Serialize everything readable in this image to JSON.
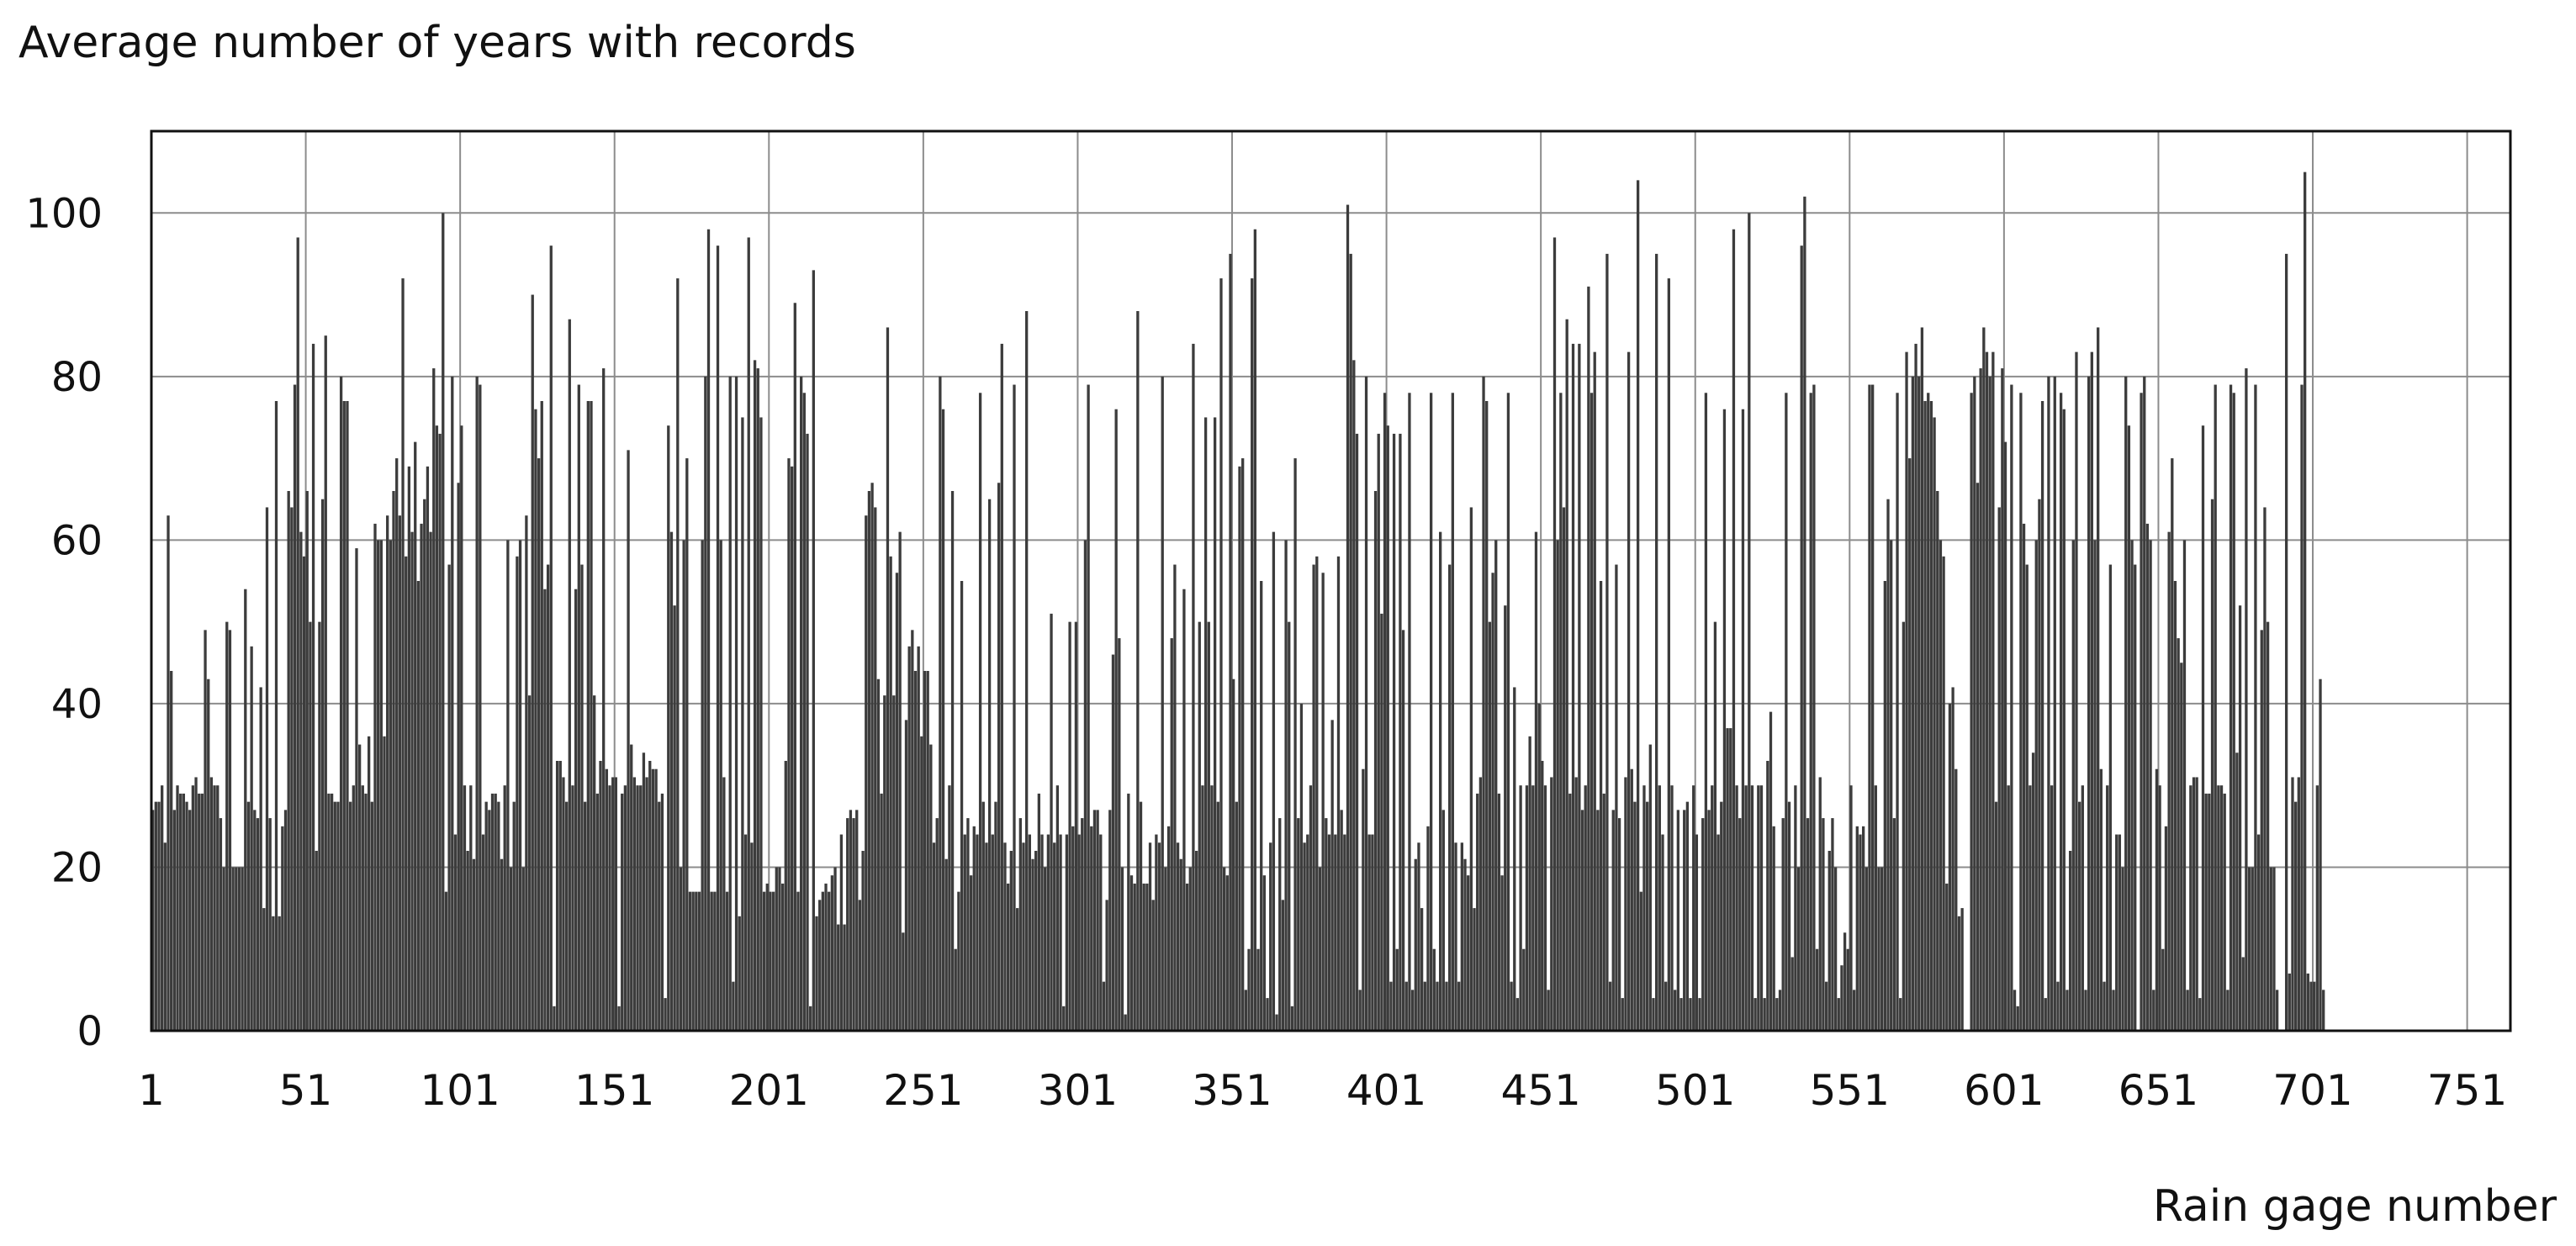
{
  "chart_data": {
    "type": "bar",
    "title": "",
    "ylabel": "Average number of years with records",
    "xlabel": "Rain gage number",
    "ylim": [
      0,
      110
    ],
    "xlim": [
      1,
      764
    ],
    "y_ticks": [
      0,
      20,
      40,
      60,
      80,
      100
    ],
    "x_ticks": [
      1,
      51,
      101,
      151,
      201,
      251,
      301,
      351,
      401,
      451,
      501,
      551,
      601,
      651,
      701,
      751
    ],
    "grid": true,
    "legend": "none",
    "bar_color": "#3c3c3c",
    "x_start": 1,
    "values": [
      27,
      28,
      28,
      30,
      23,
      63,
      44,
      27,
      30,
      29,
      29,
      28,
      27,
      30,
      31,
      29,
      29,
      49,
      43,
      31,
      30,
      30,
      26,
      20,
      50,
      49,
      20,
      20,
      20,
      20,
      54,
      28,
      47,
      27,
      26,
      42,
      15,
      64,
      26,
      14,
      77,
      14,
      25,
      27,
      66,
      64,
      79,
      97,
      61,
      58,
      66,
      50,
      84,
      22,
      50,
      65,
      85,
      29,
      29,
      28,
      28,
      80,
      77,
      77,
      28,
      30,
      59,
      35,
      30,
      29,
      36,
      28,
      62,
      60,
      60,
      36,
      63,
      60,
      66,
      70,
      63,
      92,
      58,
      69,
      61,
      72,
      55,
      62,
      65,
      69,
      61,
      81,
      74,
      73,
      100,
      17,
      57,
      80,
      24,
      67,
      74,
      30,
      22,
      30,
      21,
      80,
      79,
      24,
      28,
      27,
      29,
      29,
      28,
      21,
      30,
      60,
      20,
      28,
      58,
      60,
      20,
      63,
      41,
      90,
      76,
      70,
      77,
      54,
      57,
      96,
      3,
      33,
      33,
      31,
      28,
      87,
      30,
      54,
      79,
      57,
      28,
      77,
      77,
      41,
      29,
      33,
      81,
      32,
      30,
      31,
      31,
      3,
      29,
      30,
      71,
      35,
      31,
      30,
      30,
      34,
      31,
      33,
      32,
      32,
      28,
      29,
      4,
      74,
      61,
      52,
      92,
      20,
      60,
      70,
      17,
      17,
      17,
      17,
      60,
      80,
      98,
      17,
      17,
      96,
      60,
      31,
      17,
      80,
      6,
      80,
      14,
      75,
      24,
      97,
      23,
      82,
      81,
      75,
      17,
      18,
      17,
      17,
      20,
      20,
      18,
      33,
      70,
      69,
      89,
      17,
      80,
      78,
      73,
      3,
      93,
      14,
      16,
      17,
      18,
      17,
      19,
      20,
      13,
      24,
      13,
      26,
      27,
      26,
      27,
      16,
      22,
      63,
      66,
      67,
      64,
      43,
      29,
      41,
      86,
      58,
      41,
      56,
      61,
      12,
      38,
      47,
      49,
      44,
      47,
      36,
      44,
      44,
      35,
      23,
      26,
      80,
      76,
      21,
      30,
      66,
      10,
      17,
      55,
      24,
      26,
      19,
      25,
      24,
      78,
      28,
      23,
      65,
      24,
      28,
      67,
      84,
      23,
      18,
      22,
      79,
      15,
      26,
      23,
      88,
      24,
      21,
      22,
      29,
      24,
      20,
      24,
      51,
      23,
      30,
      24,
      3,
      24,
      50,
      25,
      50,
      24,
      26,
      60,
      79,
      25,
      27,
      27,
      24,
      6,
      16,
      27,
      46,
      76,
      48,
      20,
      2,
      29,
      19,
      18,
      88,
      28,
      18,
      18,
      23,
      16,
      24,
      23,
      80,
      20,
      25,
      48,
      57,
      23,
      21,
      54,
      18,
      20,
      84,
      22,
      50,
      30,
      75,
      50,
      30,
      75,
      28,
      92,
      20,
      19,
      95,
      43,
      28,
      69,
      70,
      5,
      10,
      92,
      98,
      10,
      55,
      19,
      4,
      23,
      61,
      2,
      26,
      16,
      60,
      50,
      3,
      70,
      26,
      40,
      23,
      24,
      30,
      57,
      58,
      20,
      56,
      26,
      24,
      38,
      24,
      58,
      27,
      24,
      101,
      95,
      82,
      73,
      5,
      32,
      80,
      24,
      24,
      66,
      73,
      51,
      78,
      74,
      6,
      73,
      10,
      73,
      49,
      6,
      78,
      5,
      21,
      23,
      15,
      6,
      25,
      78,
      10,
      6,
      61,
      27,
      6,
      57,
      78,
      23,
      6,
      23,
      21,
      19,
      64,
      15,
      29,
      31,
      80,
      77,
      50,
      56,
      60,
      29,
      19,
      52,
      78,
      6,
      42,
      4,
      30,
      10,
      30,
      36,
      30,
      61,
      40,
      33,
      30,
      5,
      31,
      97,
      60,
      78,
      64,
      87,
      29,
      84,
      31,
      84,
      27,
      30,
      91,
      78,
      83,
      27,
      55,
      29,
      95,
      6,
      27,
      57,
      26,
      4,
      31,
      83,
      32,
      28,
      104,
      17,
      30,
      28,
      35,
      4,
      95,
      30,
      24,
      6,
      92,
      30,
      5,
      27,
      4,
      27,
      28,
      4,
      30,
      24,
      4,
      26,
      78,
      27,
      30,
      50,
      24,
      28,
      76,
      37,
      37,
      98,
      30,
      26,
      76,
      30,
      100,
      30,
      4,
      30,
      30,
      4,
      33,
      39,
      25,
      4,
      5,
      26,
      78,
      28,
      9,
      30,
      20,
      96,
      102,
      26,
      78,
      79,
      10,
      31,
      26,
      6,
      22,
      26,
      20,
      4,
      8,
      12,
      10,
      30,
      5,
      25,
      24,
      25,
      20,
      79,
      79,
      30,
      20,
      20,
      55,
      65,
      60,
      26,
      78,
      4,
      50,
      83,
      70,
      80,
      84,
      80,
      86,
      77,
      78,
      77,
      75,
      66,
      60,
      58,
      18,
      40,
      42,
      32,
      14,
      15,
      0,
      0,
      78,
      80,
      67,
      81,
      86,
      83,
      80,
      83,
      28,
      64,
      81,
      72,
      30,
      79,
      5,
      3,
      78,
      62,
      57,
      30,
      34,
      60,
      65,
      77,
      4,
      80,
      30,
      80,
      6,
      78,
      76,
      5,
      22,
      60,
      83,
      28,
      30,
      5,
      80,
      83,
      60,
      86,
      32,
      6,
      30,
      57,
      5,
      24,
      24,
      20,
      80,
      74,
      60,
      57,
      0,
      78,
      80,
      62,
      60,
      5,
      32,
      30,
      10,
      25,
      61,
      70,
      55,
      48,
      45,
      60,
      5,
      30,
      31,
      31,
      4,
      74,
      29,
      29,
      65,
      79,
      30,
      30,
      29,
      5,
      79,
      78,
      34,
      52,
      9,
      81,
      20,
      20,
      79,
      24,
      49,
      64,
      50,
      20,
      20,
      5,
      0,
      0,
      95,
      7,
      31,
      28,
      31,
      79,
      105,
      7,
      6,
      6,
      30,
      43,
      5
    ]
  }
}
